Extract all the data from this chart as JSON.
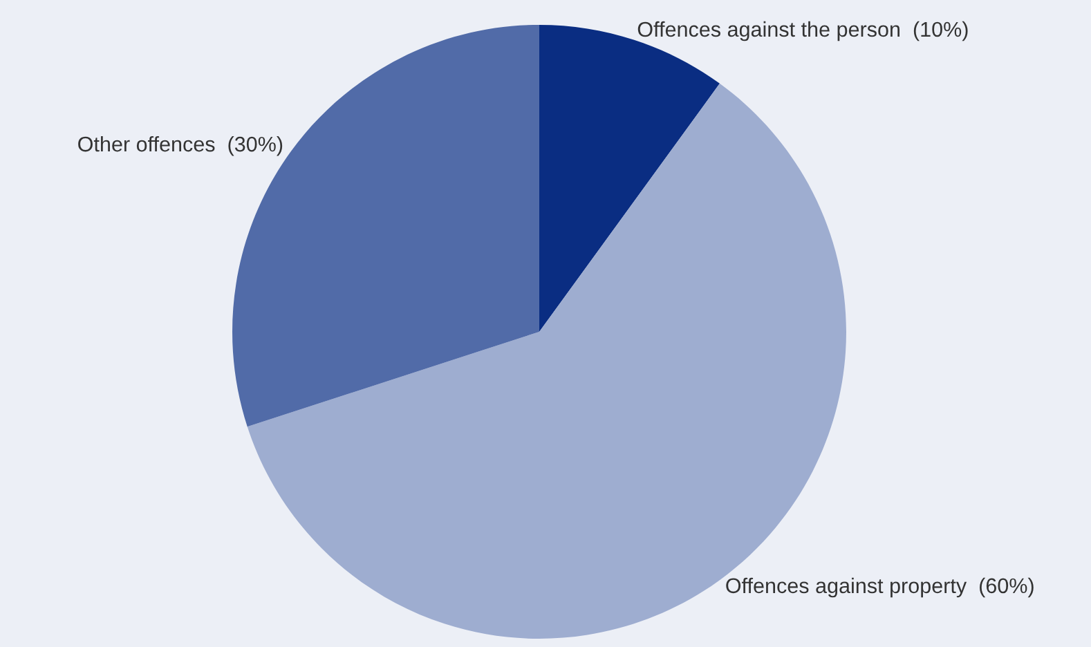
{
  "chart_data": {
    "type": "pie",
    "categories": [
      "Offences against the person  (10%)",
      "Offences against property  (60%)",
      "Other offences  (30%)"
    ],
    "values": [
      10,
      60,
      30
    ],
    "colors": [
      "#0a2d82",
      "#9eadd0",
      "#516ba8"
    ]
  }
}
